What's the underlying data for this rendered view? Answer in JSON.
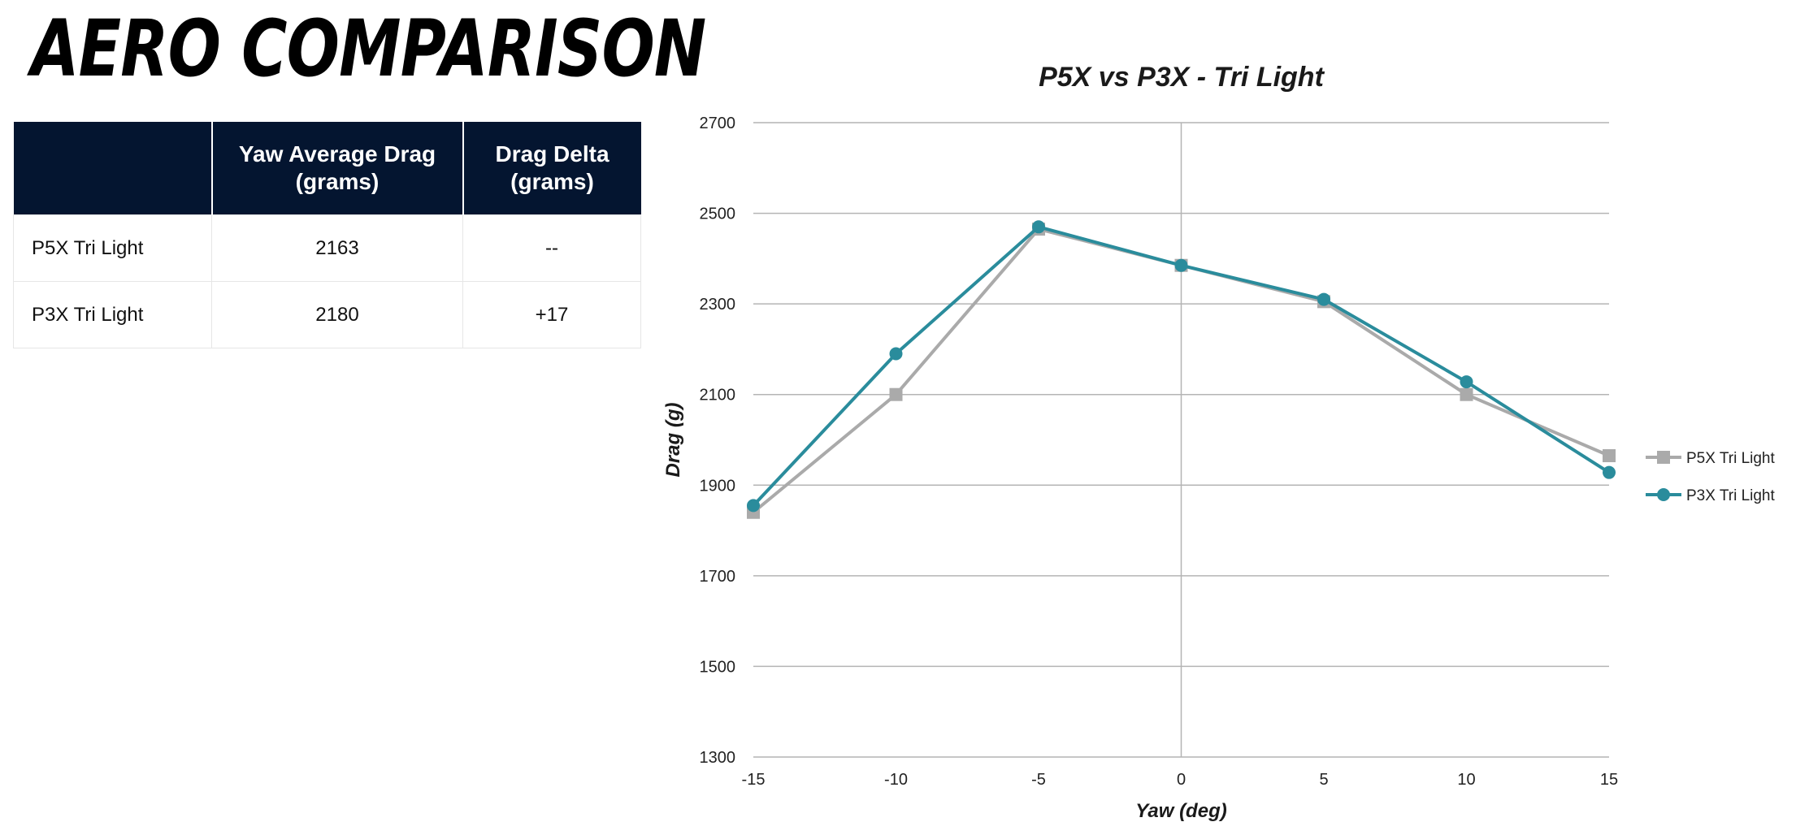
{
  "page": {
    "title": "AERO COMPARISON"
  },
  "colors": {
    "table_header_bg": "#041530",
    "table_header_text": "#ffffff",
    "grid": "#b4b4b4",
    "p5x": "#aaaaaa",
    "p3x": "#2a8c9c"
  },
  "table": {
    "headers": [
      "",
      [
        "Yaw Average Drag",
        "(grams)"
      ],
      [
        "Drag Delta",
        "(grams)"
      ]
    ],
    "rows": [
      {
        "label": "P5X Tri Light",
        "yaw_average_drag": "2163",
        "drag_delta": "--"
      },
      {
        "label": "P3X Tri Light",
        "yaw_average_drag": "2180",
        "drag_delta": "+17"
      }
    ]
  },
  "chart_data": {
    "type": "line",
    "title": "P5X vs P3X - Tri Light",
    "xlabel": "Yaw (deg)",
    "ylabel": "Drag (g)",
    "x": [
      -15,
      -10,
      -5,
      0,
      5,
      10,
      15
    ],
    "x_ticks": [
      "-15",
      "-10",
      "-5",
      "0",
      "5",
      "10",
      "15"
    ],
    "y_ticks": [
      "1300",
      "1500",
      "1700",
      "1900",
      "2100",
      "2300",
      "2500",
      "2700"
    ],
    "xlim": [
      -15,
      15
    ],
    "ylim": [
      1300,
      2700
    ],
    "grid": "horizontal",
    "legend_position": "right",
    "series": [
      {
        "name": "P5X Tri Light",
        "marker": "square",
        "color": "#aaaaaa",
        "values": [
          1840,
          2100,
          2465,
          2385,
          2305,
          2100,
          1965
        ]
      },
      {
        "name": "P3X Tri Light",
        "marker": "circle",
        "color": "#2a8c9c",
        "values": [
          1855,
          2190,
          2470,
          2385,
          2310,
          2128,
          1928
        ]
      }
    ]
  }
}
